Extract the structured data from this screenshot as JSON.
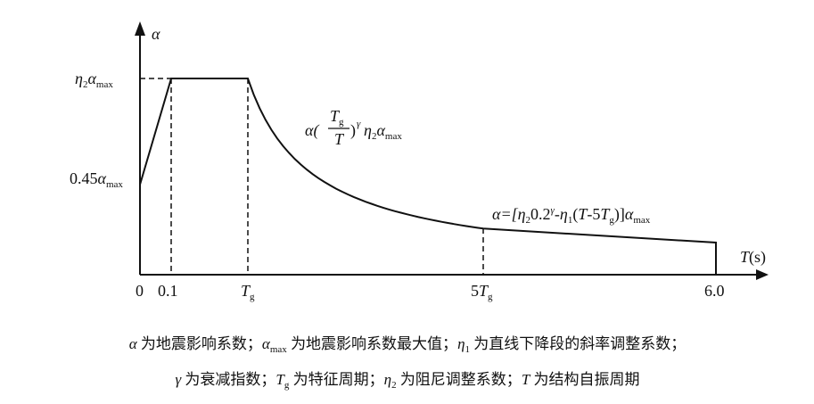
{
  "axes": {
    "y_label": "α",
    "x_label": [
      "T",
      "(s)"
    ]
  },
  "y_labels": {
    "top": [
      "η",
      "2",
      "α",
      "max"
    ],
    "mid": [
      "0.45",
      "α",
      "max"
    ]
  },
  "x_labels": {
    "origin": "0",
    "t1": "0.1",
    "tg": [
      "T",
      "g"
    ],
    "five_tg": [
      "5",
      "T",
      "g"
    ],
    "end": "6.0"
  },
  "formulas": {
    "decay": [
      "α(",
      "T",
      "g",
      "T",
      ")",
      "γ",
      "η",
      "2",
      "α",
      "max"
    ],
    "linear": [
      "α=[",
      "η",
      "2",
      "0.2",
      "γ",
      "-",
      "η",
      "1",
      "(",
      "T",
      "-5",
      "T",
      "g",
      ")]",
      "α",
      "max"
    ]
  },
  "caption": {
    "line1": [
      "α",
      " 为地震影响系数；",
      "α",
      "max",
      " 为地震影响系数最大值；",
      "η",
      "1",
      " 为直线下降段的斜率调整系数；"
    ],
    "line2": [
      "γ",
      " 为衰减指数；",
      "T",
      "g",
      " 为特征周期；",
      "η",
      "2",
      " 为阻尼调整系数；",
      "T",
      " 为结构自振周期"
    ]
  }
}
